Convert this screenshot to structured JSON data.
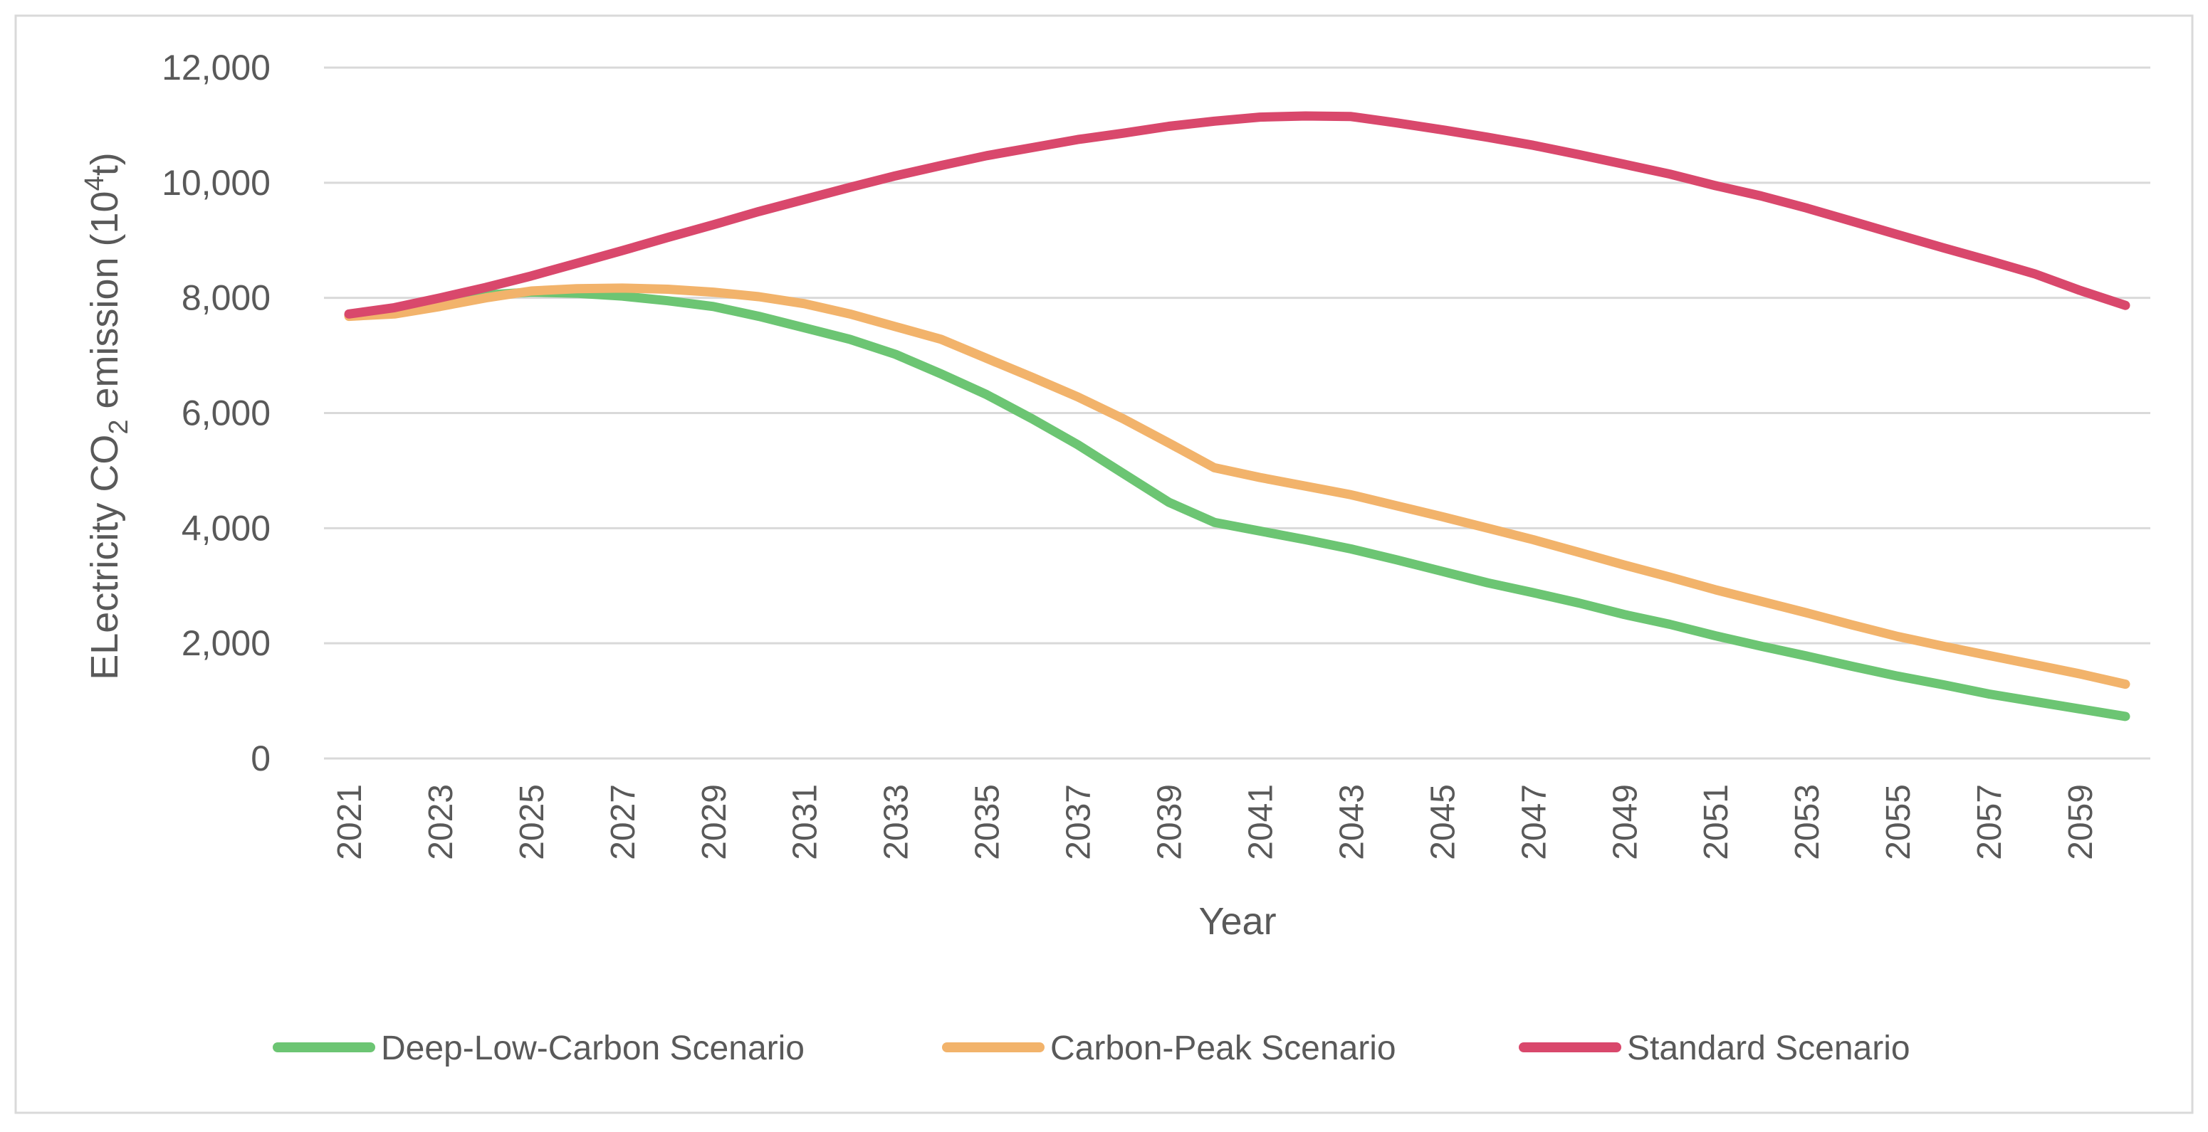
{
  "chart_data": {
    "type": "line",
    "title": "",
    "xlabel": "Year",
    "ylabel": {
      "prefix": "ELectricity CO",
      "sub": "2",
      "mid": " emission (10",
      "sup": "4",
      "suffix": "t)"
    },
    "ylim": [
      0,
      12000
    ],
    "yticks": [
      0,
      2000,
      4000,
      6000,
      8000,
      10000,
      12000
    ],
    "ytick_labels": [
      "0",
      "2,000",
      "4,000",
      "6,000",
      "8,000",
      "10,000",
      "12,000"
    ],
    "x": [
      2021,
      2022,
      2023,
      2024,
      2025,
      2026,
      2027,
      2028,
      2029,
      2030,
      2031,
      2032,
      2033,
      2034,
      2035,
      2036,
      2037,
      2038,
      2039,
      2040,
      2041,
      2042,
      2043,
      2044,
      2045,
      2046,
      2047,
      2048,
      2049,
      2050,
      2051,
      2052,
      2053,
      2054,
      2055,
      2056,
      2057,
      2058,
      2059,
      2060
    ],
    "xtick_labels": [
      "2021",
      "2023",
      "2025",
      "2027",
      "2029",
      "2031",
      "2033",
      "2035",
      "2037",
      "2039",
      "2041",
      "2043",
      "2045",
      "2047",
      "2049",
      "2051",
      "2053",
      "2055",
      "2057",
      "2059"
    ],
    "grid": true,
    "legend_position": "bottom",
    "series": [
      {
        "name": "Deep-Low-Carbon Scenario",
        "color": "#6cc573",
        "values": [
          7700,
          7750,
          7900,
          8050,
          8100,
          8080,
          8030,
          7950,
          7850,
          7680,
          7480,
          7280,
          7020,
          6680,
          6320,
          5900,
          5450,
          4950,
          4450,
          4100,
          3950,
          3800,
          3640,
          3450,
          3250,
          3050,
          2880,
          2700,
          2500,
          2330,
          2130,
          1950,
          1780,
          1600,
          1430,
          1280,
          1120,
          990,
          860,
          730
        ]
      },
      {
        "name": "Carbon-Peak Scenario",
        "color": "#f2b36b",
        "values": [
          7680,
          7720,
          7850,
          8000,
          8120,
          8160,
          8170,
          8150,
          8100,
          8020,
          7900,
          7720,
          7500,
          7280,
          6950,
          6620,
          6280,
          5900,
          5480,
          5050,
          4880,
          4730,
          4580,
          4390,
          4200,
          4000,
          3800,
          3580,
          3360,
          3150,
          2930,
          2730,
          2530,
          2320,
          2120,
          1950,
          1790,
          1630,
          1470,
          1290
        ]
      },
      {
        "name": "Standard  Scenario",
        "color": "#d9486c",
        "values": [
          7720,
          7830,
          8000,
          8180,
          8380,
          8600,
          8820,
          9050,
          9270,
          9500,
          9710,
          9920,
          10120,
          10300,
          10470,
          10610,
          10750,
          10860,
          10980,
          11070,
          11140,
          11160,
          11150,
          11040,
          10920,
          10790,
          10650,
          10490,
          10320,
          10150,
          9950,
          9770,
          9560,
          9330,
          9100,
          8870,
          8650,
          8420,
          8130,
          7870
        ]
      }
    ]
  }
}
